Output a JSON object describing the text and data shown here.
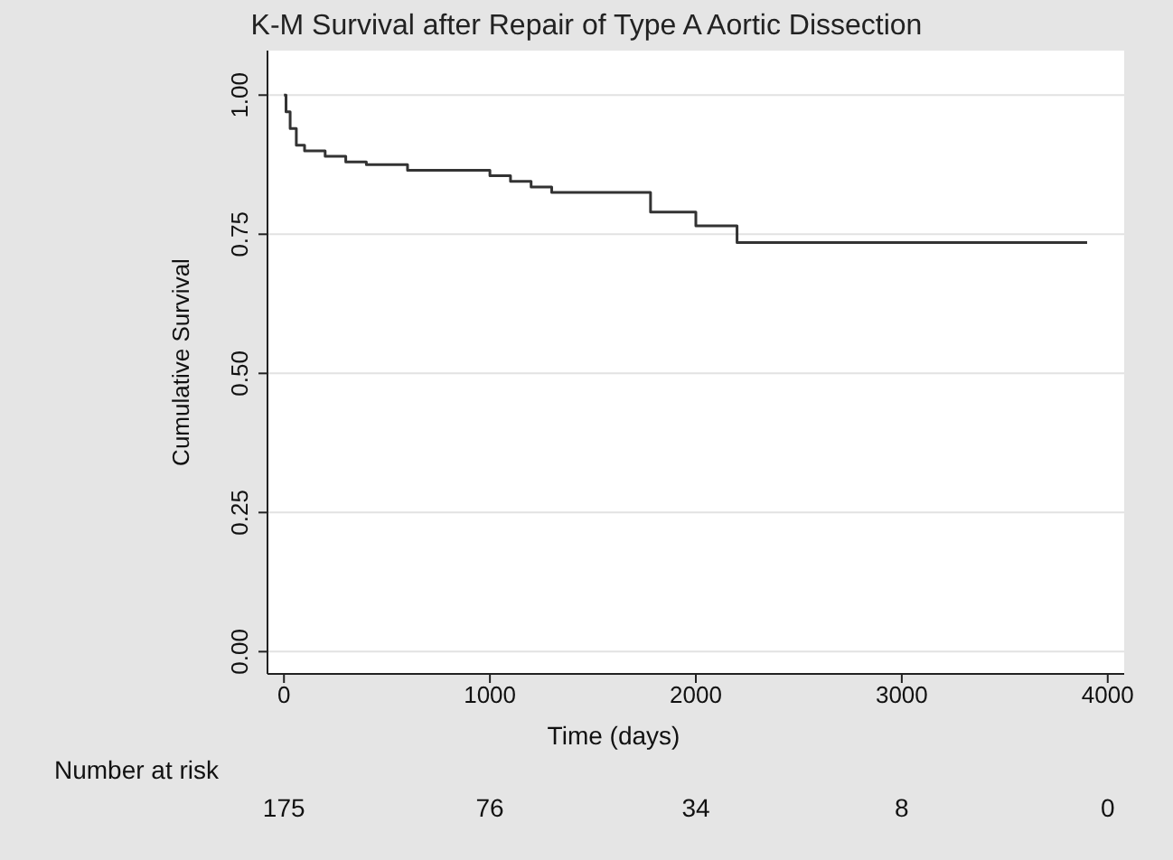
{
  "chart_data": {
    "type": "step",
    "title": "K-M Survival after Repair of Type A Aortic Dissection",
    "xlabel": "Time (days)",
    "ylabel": "Cumulative Survival",
    "x": [
      0,
      10,
      30,
      60,
      100,
      200,
      300,
      400,
      600,
      1000,
      1100,
      1200,
      1300,
      1780,
      2000,
      2200,
      3900
    ],
    "series": [
      {
        "color": "#333333",
        "values": [
          1.0,
          0.97,
          0.94,
          0.91,
          0.9,
          0.89,
          0.88,
          0.875,
          0.865,
          0.855,
          0.845,
          0.835,
          0.825,
          0.79,
          0.765,
          0.735,
          0.735
        ]
      }
    ],
    "xlim": [
      -80,
      4080
    ],
    "xticks": [
      0,
      1000,
      2000,
      3000,
      4000
    ],
    "ylim": [
      -0.04,
      1.08
    ],
    "yticks": [
      {
        "value": 0,
        "label": "0.00"
      },
      {
        "value": 0.25,
        "label": "0.25"
      },
      {
        "value": 0.5,
        "label": "0.50"
      },
      {
        "value": 0.75,
        "label": "0.75"
      },
      {
        "value": 1,
        "label": "1.00"
      }
    ],
    "grid": "y",
    "marker": "none",
    "line_style": "solid",
    "annotations": [
      "Number at risk",
      "175",
      "76",
      "34",
      "8",
      "0"
    ]
  }
}
